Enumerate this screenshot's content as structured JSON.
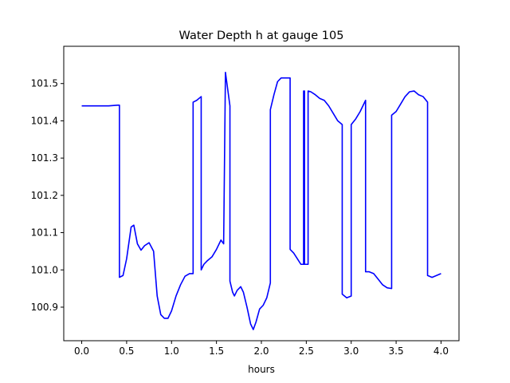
{
  "chart_data": {
    "type": "line",
    "title": "Water Depth h at gauge 105",
    "xlabel": "hours",
    "ylabel": "",
    "xlim": [
      -0.2,
      4.2
    ],
    "ylim": [
      100.81,
      101.6
    ],
    "xticks": [
      0.0,
      0.5,
      1.0,
      1.5,
      2.0,
      2.5,
      3.0,
      3.5,
      4.0
    ],
    "xtick_labels": [
      "0.0",
      "0.5",
      "1.0",
      "1.5",
      "2.0",
      "2.5",
      "3.0",
      "3.5",
      "4.0"
    ],
    "yticks": [
      100.9,
      101.0,
      101.1,
      101.2,
      101.3,
      101.4,
      101.5
    ],
    "ytick_labels": [
      "100.9",
      "101.0",
      "101.1",
      "101.2",
      "101.3",
      "101.4",
      "101.5"
    ],
    "grid": false,
    "legend": "none",
    "series": [
      {
        "color": "#0000ff",
        "x": [
          0.0,
          0.1,
          0.2,
          0.3,
          0.4,
          0.42,
          0.42,
          0.46,
          0.5,
          0.55,
          0.58,
          0.62,
          0.66,
          0.7,
          0.75,
          0.8,
          0.84,
          0.88,
          0.92,
          0.96,
          1.0,
          1.05,
          1.1,
          1.15,
          1.2,
          1.24,
          1.24,
          1.28,
          1.33,
          1.33,
          1.36,
          1.4,
          1.45,
          1.5,
          1.55,
          1.58,
          1.6,
          1.6,
          1.65,
          1.65,
          1.68,
          1.7,
          1.73,
          1.77,
          1.8,
          1.84,
          1.88,
          1.91,
          1.94,
          1.98,
          2.02,
          2.06,
          2.1,
          2.1,
          2.14,
          2.18,
          2.22,
          2.27,
          2.32,
          2.32,
          2.36,
          2.4,
          2.44,
          2.47,
          2.47,
          2.48,
          2.48,
          2.52,
          2.52,
          2.55,
          2.6,
          2.65,
          2.7,
          2.75,
          2.8,
          2.85,
          2.9,
          2.9,
          2.95,
          3.0,
          3.0,
          3.05,
          3.1,
          3.16,
          3.16,
          3.2,
          3.25,
          3.3,
          3.35,
          3.4,
          3.45,
          3.45,
          3.5,
          3.55,
          3.6,
          3.65,
          3.7,
          3.75,
          3.8,
          3.85,
          3.85,
          3.9,
          3.95,
          4.0
        ],
        "y": [
          101.44,
          101.44,
          101.44,
          101.44,
          101.442,
          101.442,
          100.98,
          100.985,
          101.03,
          101.115,
          101.12,
          101.07,
          101.053,
          101.065,
          101.073,
          101.05,
          100.93,
          100.88,
          100.87,
          100.87,
          100.89,
          100.93,
          100.96,
          100.983,
          100.99,
          100.99,
          101.45,
          101.455,
          101.465,
          101.0,
          101.015,
          101.025,
          101.035,
          101.055,
          101.08,
          101.07,
          101.53,
          101.53,
          101.44,
          100.97,
          100.94,
          100.93,
          100.945,
          100.955,
          100.94,
          100.9,
          100.855,
          100.84,
          100.86,
          100.895,
          100.905,
          100.925,
          100.965,
          101.43,
          101.47,
          101.505,
          101.515,
          101.515,
          101.515,
          101.055,
          101.045,
          101.03,
          101.015,
          101.015,
          101.48,
          101.48,
          101.015,
          101.015,
          101.48,
          101.478,
          101.47,
          101.46,
          101.455,
          101.44,
          101.42,
          101.4,
          101.39,
          100.935,
          100.925,
          100.93,
          101.39,
          101.405,
          101.425,
          101.455,
          100.995,
          100.995,
          100.99,
          100.975,
          100.96,
          100.952,
          100.95,
          101.415,
          101.425,
          101.445,
          101.465,
          101.478,
          101.48,
          101.47,
          101.465,
          101.45,
          100.985,
          100.98,
          100.985,
          100.99
        ]
      }
    ]
  }
}
